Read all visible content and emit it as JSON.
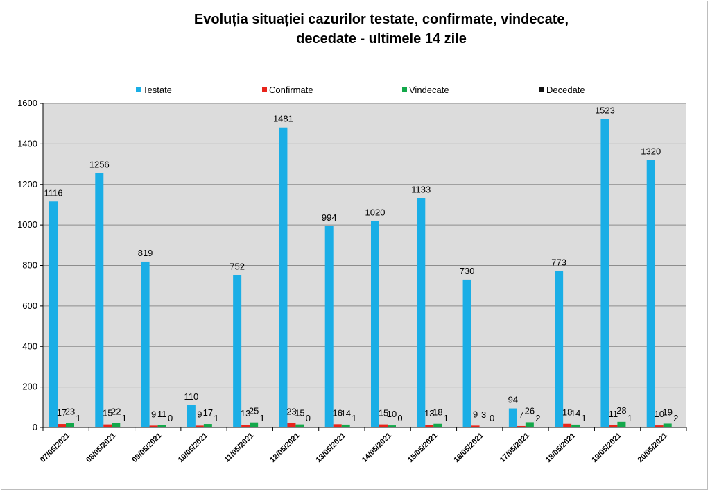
{
  "chart_data": {
    "type": "bar",
    "title_line1": "Evoluția situației cazurilor testate, confirmate, vindecate,",
    "title_line2": "decedate -  ultimele 14 zile",
    "xlabel": "",
    "ylabel": "",
    "ylim": [
      0,
      1600
    ],
    "yticks": [
      "0",
      "200",
      "400",
      "600",
      "800",
      "1000",
      "1200",
      "1400",
      "1600"
    ],
    "grid": true,
    "legend_position": "top",
    "categories": [
      "07/05/2021",
      "08/05/2021",
      "09/05/2021",
      "10/05/2021",
      "11/05/2021",
      "12/05/2021",
      "13/05/2021",
      "14/05/2021",
      "15/05/2021",
      "16/05/2021",
      "17/05/2021",
      "18/05/2021",
      "19/05/2021",
      "20/05/2021"
    ],
    "series": [
      {
        "name": "Testate",
        "color": "#1aaee6",
        "values": [
          1116,
          1256,
          819,
          110,
          752,
          1481,
          994,
          1020,
          1133,
          730,
          94,
          773,
          1523,
          1320
        ]
      },
      {
        "name": "Confirmate",
        "color": "#e8241b",
        "values": [
          17,
          15,
          9,
          9,
          13,
          23,
          16,
          15,
          13,
          9,
          7,
          18,
          11,
          10
        ]
      },
      {
        "name": "Vindecate",
        "color": "#13a84a",
        "values": [
          23,
          22,
          11,
          17,
          25,
          15,
          14,
          10,
          18,
          3,
          26,
          14,
          28,
          19
        ]
      },
      {
        "name": "Decedate",
        "color": "#111111",
        "values": [
          1,
          1,
          0,
          1,
          1,
          0,
          1,
          0,
          1,
          0,
          2,
          1,
          1,
          2
        ]
      }
    ]
  }
}
